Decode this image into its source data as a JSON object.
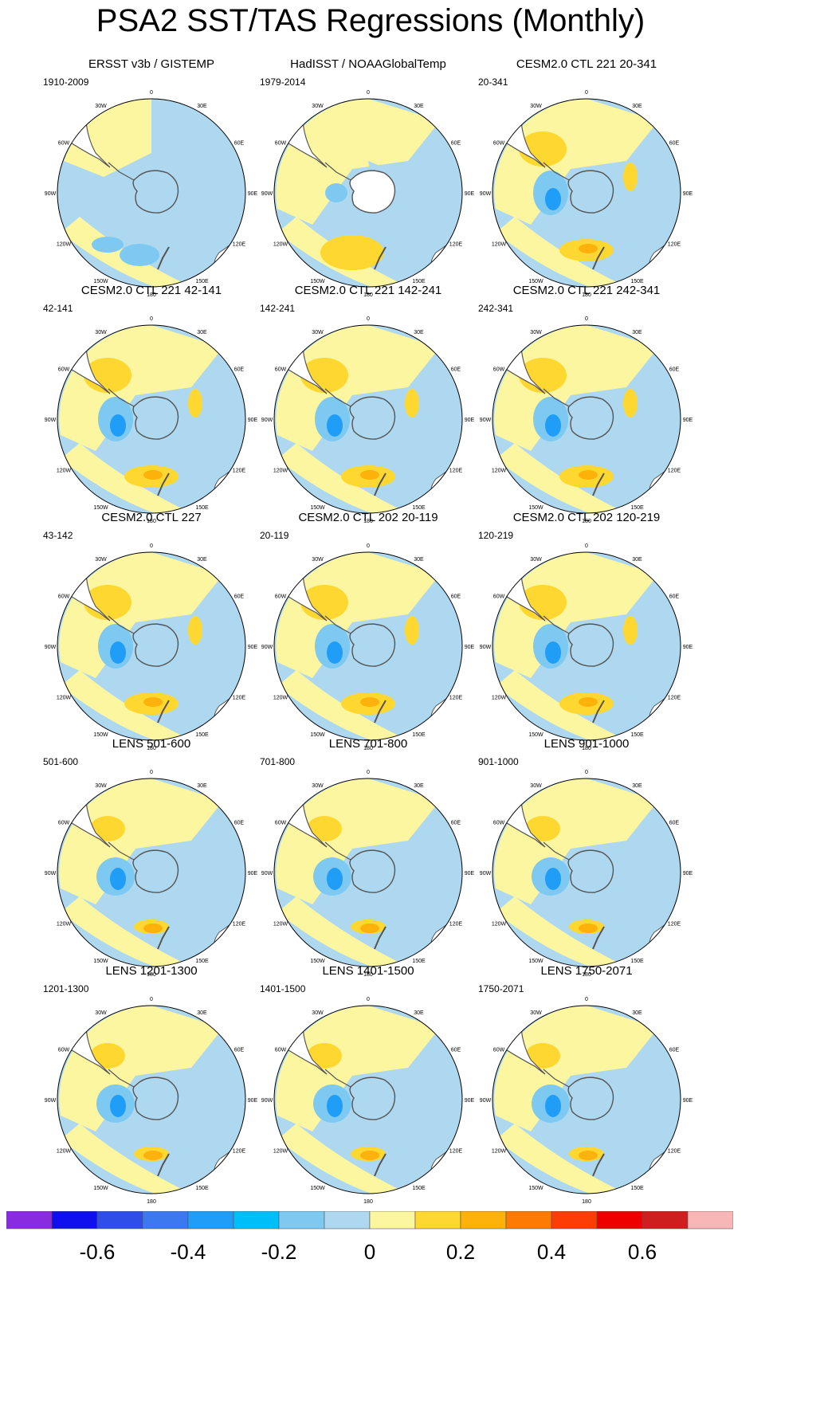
{
  "title": "PSA2 SST/TAS Regressions (Monthly)",
  "longitude_labels": [
    "0",
    "30E",
    "60E",
    "90E",
    "120E",
    "150E",
    "180",
    "150W",
    "120W",
    "90W",
    "60W",
    "30W"
  ],
  "panels": [
    {
      "title": "ERSST v3b / GISTEMP",
      "years": "1910-2009"
    },
    {
      "title": "HadISST / NOAAGlobalTemp",
      "years": "1979-2014"
    },
    {
      "title": "CESM2.0 CTL 221 20-341",
      "years": "20-341"
    },
    {
      "title": "CESM2.0 CTL 221 42-141",
      "years": "42-141"
    },
    {
      "title": "CESM2.0 CTL 221 142-241",
      "years": "142-241"
    },
    {
      "title": "CESM2.0 CTL 221 242-341",
      "years": "242-341"
    },
    {
      "title": "CESM2.0 CTL 227",
      "years": "43-142"
    },
    {
      "title": "CESM2.0 CTL 202 20-119",
      "years": "20-119"
    },
    {
      "title": "CESM2.0 CTL 202 120-219",
      "years": "120-219"
    },
    {
      "title": "LENS 501-600",
      "years": "501-600"
    },
    {
      "title": "LENS 701-800",
      "years": "701-800"
    },
    {
      "title": "LENS 901-1000",
      "years": "901-1000"
    },
    {
      "title": "LENS 1201-1300",
      "years": "1201-1300"
    },
    {
      "title": "LENS 1401-1500",
      "years": "1401-1500"
    },
    {
      "title": "LENS 1750-2071",
      "years": "1750-2071"
    }
  ],
  "colorbar": {
    "colors": [
      "#8a2be2",
      "#1010ee",
      "#2f4de8",
      "#3c78f0",
      "#1f9df7",
      "#00bff8",
      "#7dc9f2",
      "#aed8f0",
      "#fdf6a0",
      "#fed831",
      "#fdb10b",
      "#fd7a05",
      "#fd3d08",
      "#ee0000",
      "#cf1e1e",
      "#f9b6b6"
    ],
    "tick_labels": [
      "-0.6",
      "-0.4",
      "-0.2",
      "0",
      "0.2",
      "0.4",
      "0.6"
    ]
  },
  "palette": {
    "ocean_base": "#aed8f0",
    "warm_1": "#fdf6a0",
    "warm_2": "#fed831",
    "warm_3": "#fdb10b",
    "cold_1": "#7dc9f2",
    "cold_2": "#1f9df7",
    "cold_3": "#00bff8",
    "land": "#ffffff",
    "coast": "#555555"
  }
}
